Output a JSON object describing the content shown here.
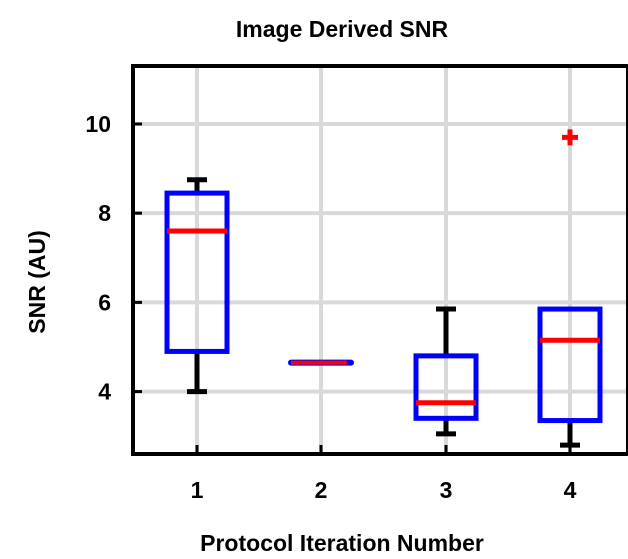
{
  "chart_data": {
    "type": "box",
    "title": "Image Derived SNR",
    "xlabel": "Protocol Iteration Number",
    "ylabel": "SNR (AU)",
    "categories": [
      "1",
      "2",
      "3",
      "4"
    ],
    "ylim": [
      2.6,
      11.3
    ],
    "yticks": [
      4,
      6,
      8,
      10
    ],
    "grid": true,
    "boxes": [
      {
        "category": "1",
        "whisker_low": 4.0,
        "q1": 4.9,
        "median": 7.6,
        "q3": 8.45,
        "whisker_high": 8.75,
        "outliers": []
      },
      {
        "category": "2",
        "whisker_low": 4.65,
        "q1": 4.65,
        "median": 4.65,
        "q3": 4.65,
        "whisker_high": 4.65,
        "outliers": []
      },
      {
        "category": "3",
        "whisker_low": 3.05,
        "q1": 3.4,
        "median": 3.75,
        "q3": 4.8,
        "whisker_high": 5.85,
        "outliers": []
      },
      {
        "category": "4",
        "whisker_low": 2.8,
        "q1": 3.35,
        "median": 5.15,
        "q3": 5.85,
        "whisker_high": 5.85,
        "outliers": [
          9.7
        ]
      }
    ],
    "colors": {
      "box": "#0000ff",
      "median": "#ff0000",
      "whisker": "#000000",
      "outlier": "#ff0000",
      "grid": "#d9d9d9",
      "axis": "#000000"
    }
  }
}
